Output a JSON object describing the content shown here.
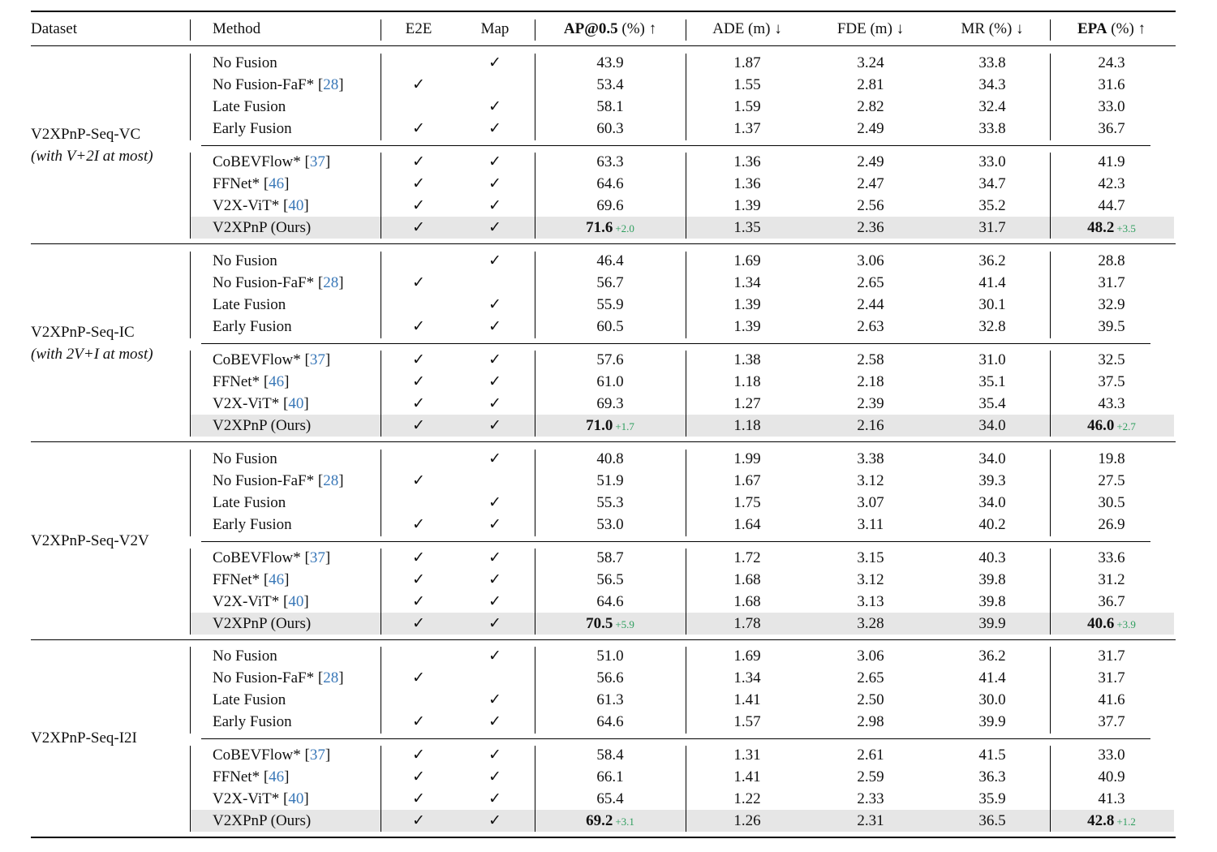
{
  "header": {
    "dataset": "Dataset",
    "method": "Method",
    "e2e": "E2E",
    "map": "Map",
    "ap_bold": "AP@0.5",
    "ap_rest": " (%) ↑",
    "ade": "ADE (m) ↓",
    "fde": "FDE (m) ↓",
    "mr": "MR (%) ↓",
    "epa_bold": "EPA",
    "epa_rest": " (%) ↑"
  },
  "check_symbol": "✓",
  "groups": [
    {
      "name": "V2XPnP-Seq-VC",
      "subtitle": "(with V+2I at most)",
      "rows": [
        {
          "method": "No Fusion",
          "cite": "",
          "e2e": false,
          "map": true,
          "ap": "43.9",
          "ade": "1.87",
          "fde": "3.24",
          "mr": "33.8",
          "epa": "24.3"
        },
        {
          "method": "No Fusion-FaF* ",
          "cite": "28",
          "e2e": true,
          "map": false,
          "ap": "53.4",
          "ade": "1.55",
          "fde": "2.81",
          "mr": "34.3",
          "epa": "31.6"
        },
        {
          "method": "Late Fusion",
          "cite": "",
          "e2e": false,
          "map": true,
          "ap": "58.1",
          "ade": "1.59",
          "fde": "2.82",
          "mr": "32.4",
          "epa": "33.0"
        },
        {
          "method": "Early Fusion",
          "cite": "",
          "e2e": true,
          "map": true,
          "ap": "60.3",
          "ade": "1.37",
          "fde": "2.49",
          "mr": "33.8",
          "epa": "36.7"
        },
        {
          "method": "CoBEVFlow* ",
          "cite": "37",
          "e2e": true,
          "map": true,
          "ap": "63.3",
          "ade": "1.36",
          "fde": "2.49",
          "mr": "33.0",
          "epa": "41.9"
        },
        {
          "method": "FFNet* ",
          "cite": "46",
          "e2e": true,
          "map": true,
          "ap": "64.6",
          "ade": "1.36",
          "fde": "2.47",
          "mr": "34.7",
          "epa": "42.3"
        },
        {
          "method": "V2X-ViT* ",
          "cite": "40",
          "e2e": true,
          "map": true,
          "ap": "69.6",
          "ade": "1.39",
          "fde": "2.56",
          "mr": "35.2",
          "epa": "44.7"
        },
        {
          "method": "V2XPnP (Ours)",
          "cite": "",
          "e2e": true,
          "map": true,
          "ap": "71.6",
          "ap_delta": "+2.0",
          "ade": "1.35",
          "fde": "2.36",
          "mr": "31.7",
          "epa": "48.2",
          "epa_delta": "+3.5",
          "ours": true
        }
      ]
    },
    {
      "name": "V2XPnP-Seq-IC",
      "subtitle": "(with 2V+I at most)",
      "rows": [
        {
          "method": "No Fusion",
          "cite": "",
          "e2e": false,
          "map": true,
          "ap": "46.4",
          "ade": "1.69",
          "fde": "3.06",
          "mr": "36.2",
          "epa": "28.8"
        },
        {
          "method": "No Fusion-FaF* ",
          "cite": "28",
          "e2e": true,
          "map": false,
          "ap": "56.7",
          "ade": "1.34",
          "fde": "2.65",
          "mr": "41.4",
          "epa": "31.7"
        },
        {
          "method": "Late Fusion",
          "cite": "",
          "e2e": false,
          "map": true,
          "ap": "55.9",
          "ade": "1.39",
          "fde": "2.44",
          "mr": "30.1",
          "epa": "32.9"
        },
        {
          "method": "Early Fusion",
          "cite": "",
          "e2e": true,
          "map": true,
          "ap": "60.5",
          "ade": "1.39",
          "fde": "2.63",
          "mr": "32.8",
          "epa": "39.5"
        },
        {
          "method": "CoBEVFlow* ",
          "cite": "37",
          "e2e": true,
          "map": true,
          "ap": "57.6",
          "ade": "1.38",
          "fde": "2.58",
          "mr": "31.0",
          "epa": "32.5"
        },
        {
          "method": "FFNet* ",
          "cite": "46",
          "e2e": true,
          "map": true,
          "ap": "61.0",
          "ade": "1.18",
          "fde": "2.18",
          "mr": "35.1",
          "epa": "37.5"
        },
        {
          "method": "V2X-ViT* ",
          "cite": "40",
          "e2e": true,
          "map": true,
          "ap": "69.3",
          "ade": "1.27",
          "fde": "2.39",
          "mr": "35.4",
          "epa": "43.3"
        },
        {
          "method": "V2XPnP (Ours)",
          "cite": "",
          "e2e": true,
          "map": true,
          "ap": "71.0",
          "ap_delta": "+1.7",
          "ade": "1.18",
          "fde": "2.16",
          "mr": "34.0",
          "epa": "46.0",
          "epa_delta": "+2.7",
          "ours": true
        }
      ]
    },
    {
      "name": "V2XPnP-Seq-V2V",
      "subtitle": "",
      "rows": [
        {
          "method": "No Fusion",
          "cite": "",
          "e2e": false,
          "map": true,
          "ap": "40.8",
          "ade": "1.99",
          "fde": "3.38",
          "mr": "34.0",
          "epa": "19.8"
        },
        {
          "method": "No Fusion-FaF* ",
          "cite": "28",
          "e2e": true,
          "map": false,
          "ap": "51.9",
          "ade": "1.67",
          "fde": "3.12",
          "mr": "39.3",
          "epa": "27.5"
        },
        {
          "method": "Late Fusion",
          "cite": "",
          "e2e": false,
          "map": true,
          "ap": "55.3",
          "ade": "1.75",
          "fde": "3.07",
          "mr": "34.0",
          "epa": "30.5"
        },
        {
          "method": "Early Fusion",
          "cite": "",
          "e2e": true,
          "map": true,
          "ap": "53.0",
          "ade": "1.64",
          "fde": "3.11",
          "mr": "40.2",
          "epa": "26.9"
        },
        {
          "method": "CoBEVFlow* ",
          "cite": "37",
          "e2e": true,
          "map": true,
          "ap": "58.7",
          "ade": "1.72",
          "fde": "3.15",
          "mr": "40.3",
          "epa": "33.6"
        },
        {
          "method": "FFNet* ",
          "cite": "46",
          "e2e": true,
          "map": true,
          "ap": "56.5",
          "ade": "1.68",
          "fde": "3.12",
          "mr": "39.8",
          "epa": "31.2"
        },
        {
          "method": "V2X-ViT* ",
          "cite": "40",
          "e2e": true,
          "map": true,
          "ap": "64.6",
          "ade": "1.68",
          "fde": "3.13",
          "mr": "39.8",
          "epa": "36.7"
        },
        {
          "method": "V2XPnP (Ours)",
          "cite": "",
          "e2e": true,
          "map": true,
          "ap": "70.5",
          "ap_delta": "+5.9",
          "ade": "1.78",
          "fde": "3.28",
          "mr": "39.9",
          "epa": "40.6",
          "epa_delta": "+3.9",
          "ours": true
        }
      ]
    },
    {
      "name": "V2XPnP-Seq-I2I",
      "subtitle": "",
      "rows": [
        {
          "method": "No Fusion",
          "cite": "",
          "e2e": false,
          "map": true,
          "ap": "51.0",
          "ade": "1.69",
          "fde": "3.06",
          "mr": "36.2",
          "epa": "31.7"
        },
        {
          "method": "No Fusion-FaF* ",
          "cite": "28",
          "e2e": true,
          "map": false,
          "ap": "56.6",
          "ade": "1.34",
          "fde": "2.65",
          "mr": "41.4",
          "epa": "31.7"
        },
        {
          "method": "Late Fusion",
          "cite": "",
          "e2e": false,
          "map": true,
          "ap": "61.3",
          "ade": "1.41",
          "fde": "2.50",
          "mr": "30.0",
          "epa": "41.6"
        },
        {
          "method": "Early Fusion",
          "cite": "",
          "e2e": true,
          "map": true,
          "ap": "64.6",
          "ade": "1.57",
          "fde": "2.98",
          "mr": "39.9",
          "epa": "37.7"
        },
        {
          "method": "CoBEVFlow* ",
          "cite": "37",
          "e2e": true,
          "map": true,
          "ap": "58.4",
          "ade": "1.31",
          "fde": "2.61",
          "mr": "41.5",
          "epa": "33.0"
        },
        {
          "method": "FFNet* ",
          "cite": "46",
          "e2e": true,
          "map": true,
          "ap": "66.1",
          "ade": "1.41",
          "fde": "2.59",
          "mr": "36.3",
          "epa": "40.9"
        },
        {
          "method": "V2X-ViT* ",
          "cite": "40",
          "e2e": true,
          "map": true,
          "ap": "65.4",
          "ade": "1.22",
          "fde": "2.33",
          "mr": "35.9",
          "epa": "41.3"
        },
        {
          "method": "V2XPnP (Ours)",
          "cite": "",
          "e2e": true,
          "map": true,
          "ap": "69.2",
          "ap_delta": "+3.1",
          "ade": "1.26",
          "fde": "2.31",
          "mr": "36.5",
          "epa": "42.8",
          "epa_delta": "+1.2",
          "ours": true
        }
      ]
    }
  ],
  "colors": {
    "highlight_row": "#e6e6e6",
    "delta_green": "#2e9e5e",
    "citation_blue": "#3a78b8"
  }
}
